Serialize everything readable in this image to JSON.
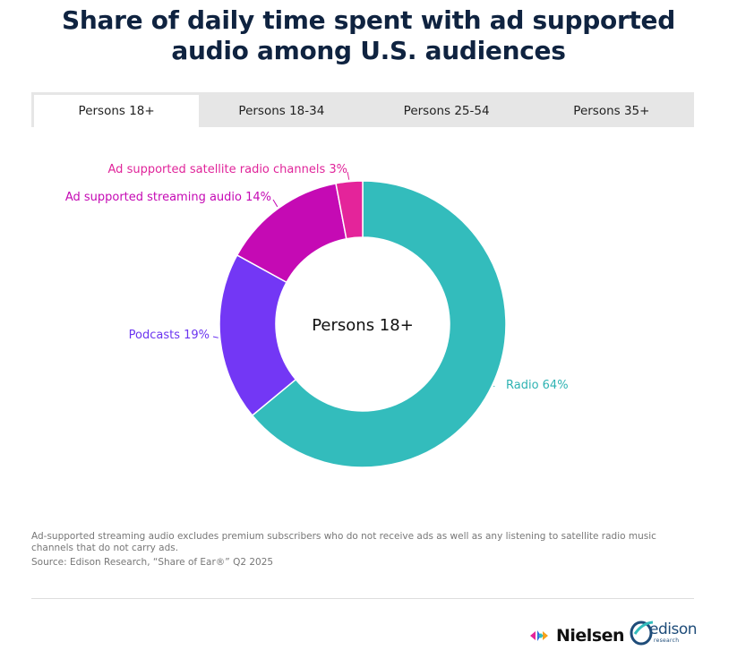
{
  "header": {
    "title_line1": "Share of daily time spent with ad supported",
    "title_line2": "audio among U.S. audiences"
  },
  "tabs": [
    {
      "label": "Persons 18+",
      "active": true
    },
    {
      "label": "Persons 18-34",
      "active": false
    },
    {
      "label": "Persons 25-54",
      "active": false
    },
    {
      "label": "Persons 35+",
      "active": false
    }
  ],
  "chart_data": {
    "type": "pie",
    "variant": "donut",
    "center_label": "Persons 18+",
    "slices": [
      {
        "label": "Radio 64%",
        "value": 64,
        "color": "#33bcbc",
        "label_color": "#2fb3b3"
      },
      {
        "label": "Podcasts 19%",
        "value": 19,
        "color": "#7337f5",
        "label_color": "#6b35f0"
      },
      {
        "label": "Ad supported streaming audio 14%",
        "value": 14,
        "color": "#c50ab4",
        "label_color": "#c50ab4"
      },
      {
        "label": "Ad supported satellite radio channels 3%",
        "value": 3,
        "color": "#e4249a",
        "label_color": "#e0249a"
      }
    ]
  },
  "footer": {
    "note": "Ad-supported streaming audio excludes premium subscribers who do not receive ads as well as any listening to satellite radio music channels that do not carry ads.",
    "source": "Source: Edison Research, “Share of Ear®” Q2 2025",
    "logo_nielsen": "Nielsen",
    "logo_edison": "edison",
    "logo_edison_sub": "research"
  }
}
